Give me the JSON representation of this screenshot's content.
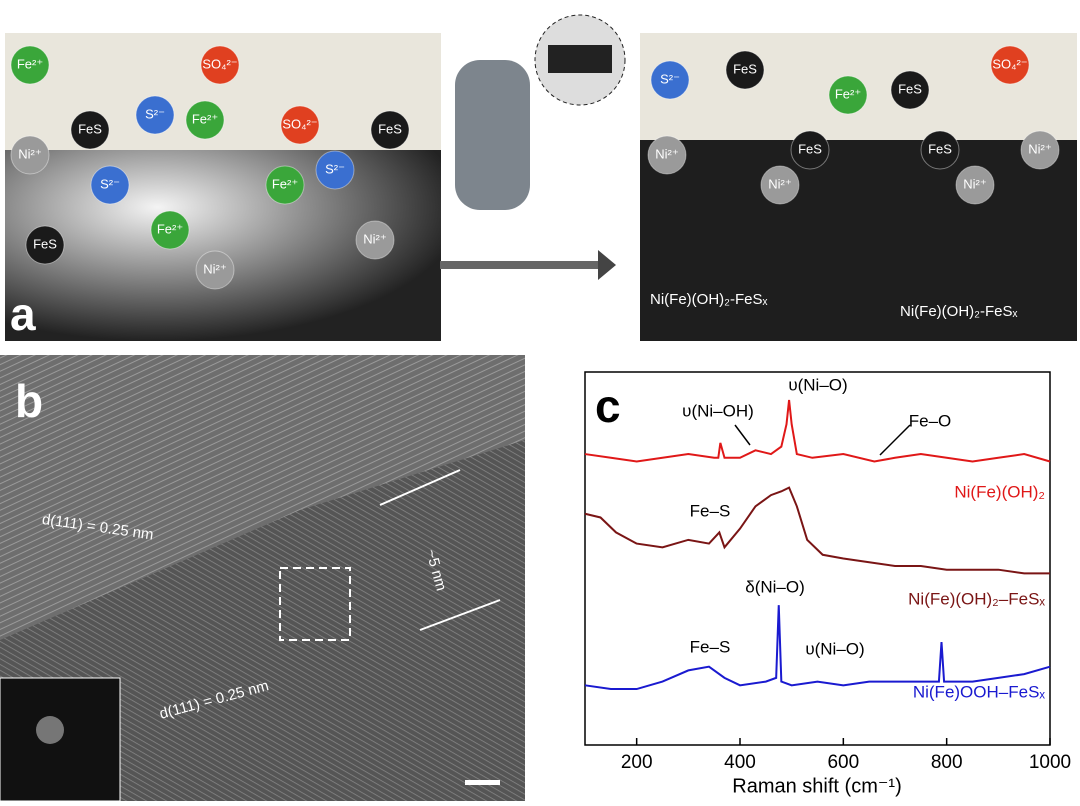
{
  "panel_a": {
    "label": "a",
    "ions": [
      {
        "label": "Fe²⁺",
        "color": "#3aa63a"
      },
      {
        "label": "SO₄²⁻",
        "color": "#e04020"
      },
      {
        "label": "S²⁻",
        "color": "#3a6fd0"
      },
      {
        "label": "Fe²⁺",
        "color": "#3aa63a"
      },
      {
        "label": "FeS",
        "color": "#1a1a1a"
      },
      {
        "label": "SO₄²⁻",
        "color": "#e04020"
      },
      {
        "label": "FeS",
        "color": "#1a1a1a"
      },
      {
        "label": "Ni²⁺",
        "color": "#9a9a9a"
      },
      {
        "label": "S²⁻",
        "color": "#3a6fd0"
      },
      {
        "label": "Fe²⁺",
        "color": "#3aa63a"
      },
      {
        "label": "S²⁻",
        "color": "#3a6fd0"
      },
      {
        "label": "FeS",
        "color": "#1a1a1a"
      },
      {
        "label": "Fe²⁺",
        "color": "#3aa63a"
      },
      {
        "label": "Ni²⁺",
        "color": "#9a9a9a"
      },
      {
        "label": "Ni²⁺",
        "color": "#9a9a9a"
      },
      {
        "label": "S²⁻",
        "color": "#3a6fd0"
      },
      {
        "label": "FeS",
        "color": "#1a1a1a"
      },
      {
        "label": "Fe²⁺",
        "color": "#3aa63a"
      },
      {
        "label": "FeS",
        "color": "#1a1a1a"
      },
      {
        "label": "SO₄²⁻",
        "color": "#e04020"
      },
      {
        "label": "Ni²⁺",
        "color": "#9a9a9a"
      },
      {
        "label": "Ni²⁺",
        "color": "#9a9a9a"
      },
      {
        "label": "FeS",
        "color": "#1a1a1a"
      },
      {
        "label": "FeS",
        "color": "#1a1a1a"
      },
      {
        "label": "Ni²⁺",
        "color": "#9a9a9a"
      },
      {
        "label": "Ni²⁺",
        "color": "#9a9a9a"
      }
    ],
    "products": [
      "Ni(Fe)(OH)₂-FeSₓ",
      "Ni(Fe)(OH)₂-FeSₓ"
    ]
  },
  "panel_b": {
    "label": "b",
    "spacings": [
      "d(111) = 0.25 nm",
      "d(111) = 0.25 nm"
    ],
    "thickness": "~5 nm"
  },
  "chart_data": {
    "type": "line",
    "label": "c",
    "xlabel": "Raman shift (cm⁻¹)",
    "xlim": [
      100,
      1000
    ],
    "xticks": [
      200,
      400,
      600,
      800,
      1000
    ],
    "ylim": [
      0,
      100
    ],
    "series": [
      {
        "name": "Ni(Fe)(OH)₂",
        "color": "#e01818",
        "x": [
          100,
          150,
          200,
          250,
          300,
          350,
          358,
          362,
          370,
          400,
          430,
          460,
          480,
          490,
          495,
          500,
          510,
          540,
          600,
          660,
          700,
          750,
          800,
          850,
          900,
          950,
          1000
        ],
        "values": [
          78,
          77,
          76,
          77,
          78,
          77,
          77,
          81,
          77,
          77,
          79,
          78,
          80,
          86,
          92.5,
          86,
          78,
          77,
          78,
          76,
          77,
          78,
          77,
          76,
          77,
          78,
          76
        ]
      },
      {
        "name": "Ni(Fe)(OH)₂–FeSₓ",
        "color": "#7a1515",
        "x": [
          100,
          130,
          160,
          200,
          250,
          300,
          340,
          360,
          370,
          400,
          430,
          460,
          480,
          495,
          510,
          530,
          560,
          600,
          650,
          700,
          750,
          800,
          850,
          900,
          950,
          1000
        ],
        "values": [
          62,
          61,
          57,
          54,
          53,
          55,
          54,
          57,
          53,
          58,
          64,
          67,
          68,
          69,
          64,
          55,
          51,
          50,
          49,
          48,
          48,
          47,
          47,
          47,
          46,
          46
        ]
      },
      {
        "name": "Ni(Fe)OOH–FeSₓ",
        "color": "#1a1ad0",
        "x": [
          100,
          150,
          200,
          250,
          300,
          340,
          370,
          400,
          450,
          470,
          475,
          480,
          500,
          550,
          600,
          650,
          700,
          750,
          785,
          790,
          795,
          850,
          900,
          950,
          1000
        ],
        "values": [
          16,
          15,
          15,
          17,
          20,
          21,
          18,
          16,
          17,
          18,
          37.5,
          17,
          16,
          17,
          16,
          17,
          17,
          17,
          17,
          27.6,
          17,
          17,
          18,
          19,
          21
        ]
      }
    ],
    "annotations": [
      "υ(Ni–OH)",
      "υ(Ni–O)",
      "Fe–O",
      "Fe–S",
      "δ(Ni–O)",
      "υ(Ni–O)",
      "Fe–S"
    ]
  }
}
